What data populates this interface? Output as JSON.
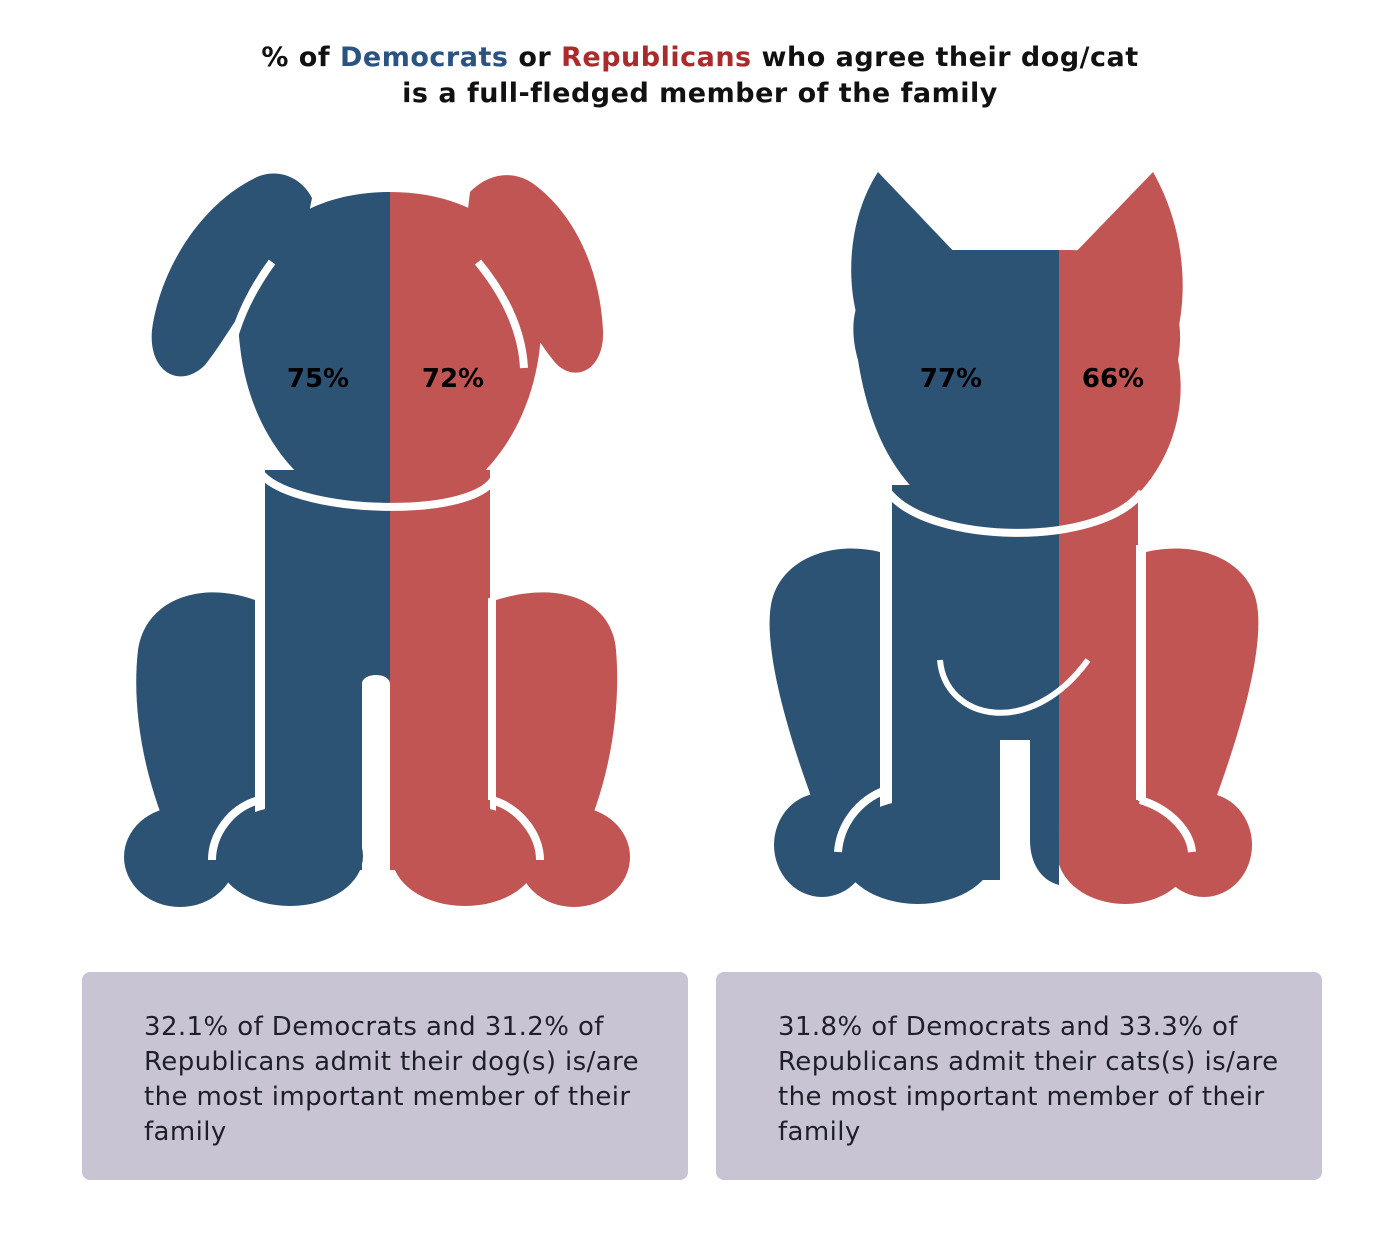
{
  "title": {
    "prefix": "% of ",
    "dem_word": "Democrats",
    "middle": " or ",
    "rep_word": "Republicans",
    "suffix": " who agree their dog/cat",
    "line2": "is a full-fledged member of the family"
  },
  "colors": {
    "democrats": "#2d5374",
    "republicans": "#c05553",
    "dem_text": "#2a5384",
    "rep_text": "#a92b2b",
    "box": "#c8c4d4"
  },
  "chart_data": {
    "type": "bar",
    "categories": [
      "dog",
      "cat"
    ],
    "series": [
      {
        "name": "Democrats",
        "values": [
          75,
          77
        ]
      },
      {
        "name": "Republicans",
        "values": [
          72,
          66
        ]
      }
    ],
    "data_labels": {
      "dog": {
        "democrats": "75%",
        "republicans": "72%"
      },
      "cat": {
        "democrats": "77%",
        "republicans": "66%"
      }
    }
  },
  "notes": {
    "dog": "32.1% of Democrats and 31.2% of Republicans admit their dog(s) is/are the most important member of their family",
    "cat": "31.8% of Democrats and 33.3% of Republicans admit their cats(s) is/are the most important member of their family"
  }
}
